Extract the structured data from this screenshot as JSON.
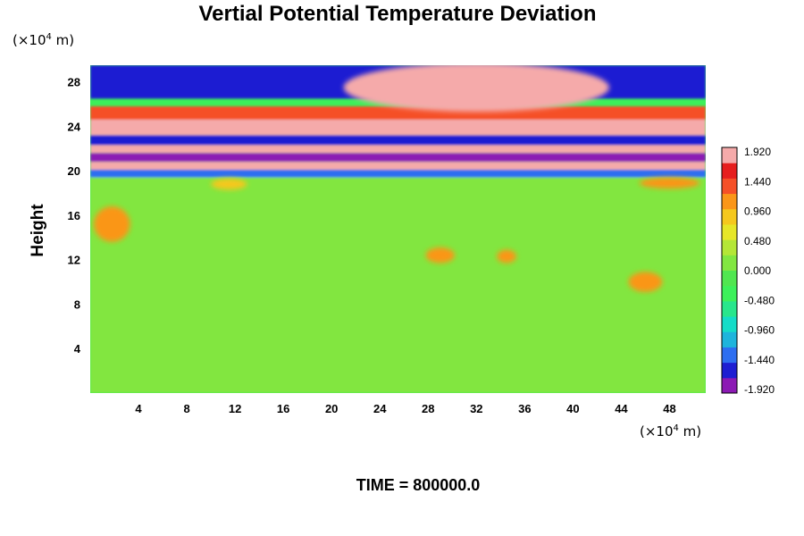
{
  "chart_data": {
    "type": "heatmap",
    "title": "Vertial Potential Temperature Deviation",
    "ylabel": "Height",
    "x_unit": {
      "prefix": "(×10",
      "exp": "4",
      "suffix": " m)"
    },
    "y_unit": {
      "prefix": "(×10",
      "exp": "4",
      "suffix": " m)"
    },
    "x_ticks": [
      4,
      8,
      12,
      16,
      20,
      24,
      28,
      32,
      36,
      40,
      44,
      48
    ],
    "y_ticks": [
      4,
      8,
      12,
      16,
      20,
      24,
      28
    ],
    "xlim": [
      0,
      51
    ],
    "ylim": [
      0,
      29.5
    ],
    "colorbar": {
      "ticks": [
        "1.920",
        "1.440",
        "0.960",
        "0.480",
        "0.000",
        "-0.480",
        "-0.960",
        "-1.440",
        "-1.920"
      ],
      "range": [
        -2.16,
        2.16
      ],
      "colors": [
        "#8c1ab4",
        "#1e1ed2",
        "#2d6ef0",
        "#1eb4dc",
        "#14dcc8",
        "#28e68c",
        "#3cf05a",
        "#50e650",
        "#82e641",
        "#b4e637",
        "#e6e628",
        "#f5c81e",
        "#fa9619",
        "#f55028",
        "#e61e1e",
        "#f5aaaa"
      ]
    },
    "bands": [
      {
        "y": [
          26.5,
          29.5
        ],
        "value": -1.8
      },
      {
        "y": [
          24.6,
          25.8
        ],
        "value": 1.6
      },
      {
        "y": [
          23.2,
          24.6
        ],
        "value": 2.1
      },
      {
        "y": [
          22.3,
          23.2
        ],
        "value": -1.8
      },
      {
        "y": [
          21.6,
          22.3
        ],
        "value": 2.1
      },
      {
        "y": [
          20.8,
          21.6
        ],
        "value": -1.9
      },
      {
        "y": [
          20.1,
          20.8
        ],
        "value": 2.1
      },
      {
        "y": [
          19.4,
          20.1
        ],
        "value": -1.6
      },
      {
        "y": [
          0,
          19.4
        ],
        "value": 0.1
      }
    ],
    "features": [
      {
        "x": 32,
        "y": 27.5,
        "rx": 11,
        "ry": 2.2,
        "value": 2.1
      },
      {
        "x": 1.8,
        "y": 15.2,
        "rx": 1.5,
        "ry": 1.6,
        "value": 1.2
      },
      {
        "x": 46,
        "y": 10,
        "rx": 1.4,
        "ry": 0.9,
        "value": 1.3
      },
      {
        "x": 29,
        "y": 12.4,
        "rx": 1.2,
        "ry": 0.7,
        "value": 1.2
      },
      {
        "x": 34.5,
        "y": 12.3,
        "rx": 0.8,
        "ry": 0.6,
        "value": 1.1
      },
      {
        "x": 11.5,
        "y": 18.8,
        "rx": 1.5,
        "ry": 0.5,
        "value": 1.0
      },
      {
        "x": 48,
        "y": 18.9,
        "rx": 2.5,
        "ry": 0.5,
        "value": 1.2
      }
    ],
    "time_label": "TIME = 800000.0"
  }
}
